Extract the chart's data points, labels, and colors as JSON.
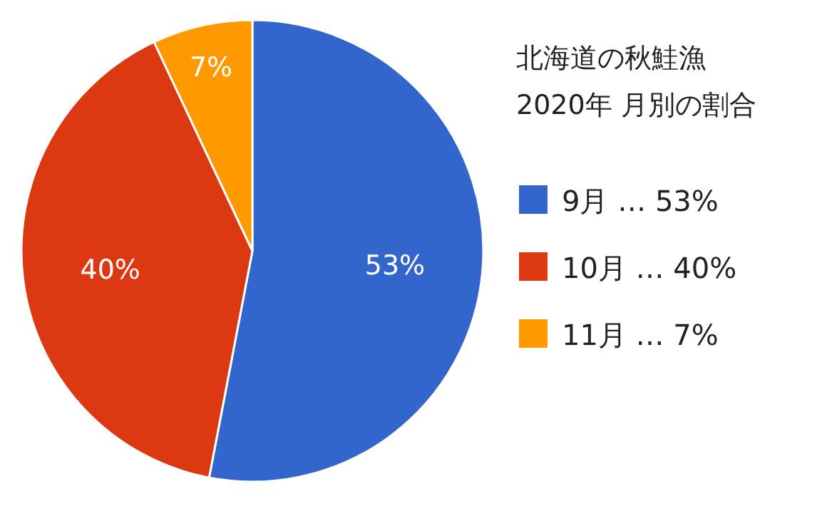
{
  "chart_data": {
    "type": "pie",
    "title": "北海道の秋鮭漁",
    "subtitle": "2020年 月別の割合",
    "categories": [
      "9月 … 53%",
      "10月 … 40%",
      "11月 … 7%"
    ],
    "values": [
      53,
      40,
      7
    ],
    "value_labels": [
      "53%",
      "40%",
      "7%"
    ],
    "colors": [
      "#3366cc",
      "#dc3912",
      "#ff9900"
    ],
    "legend": "right"
  }
}
